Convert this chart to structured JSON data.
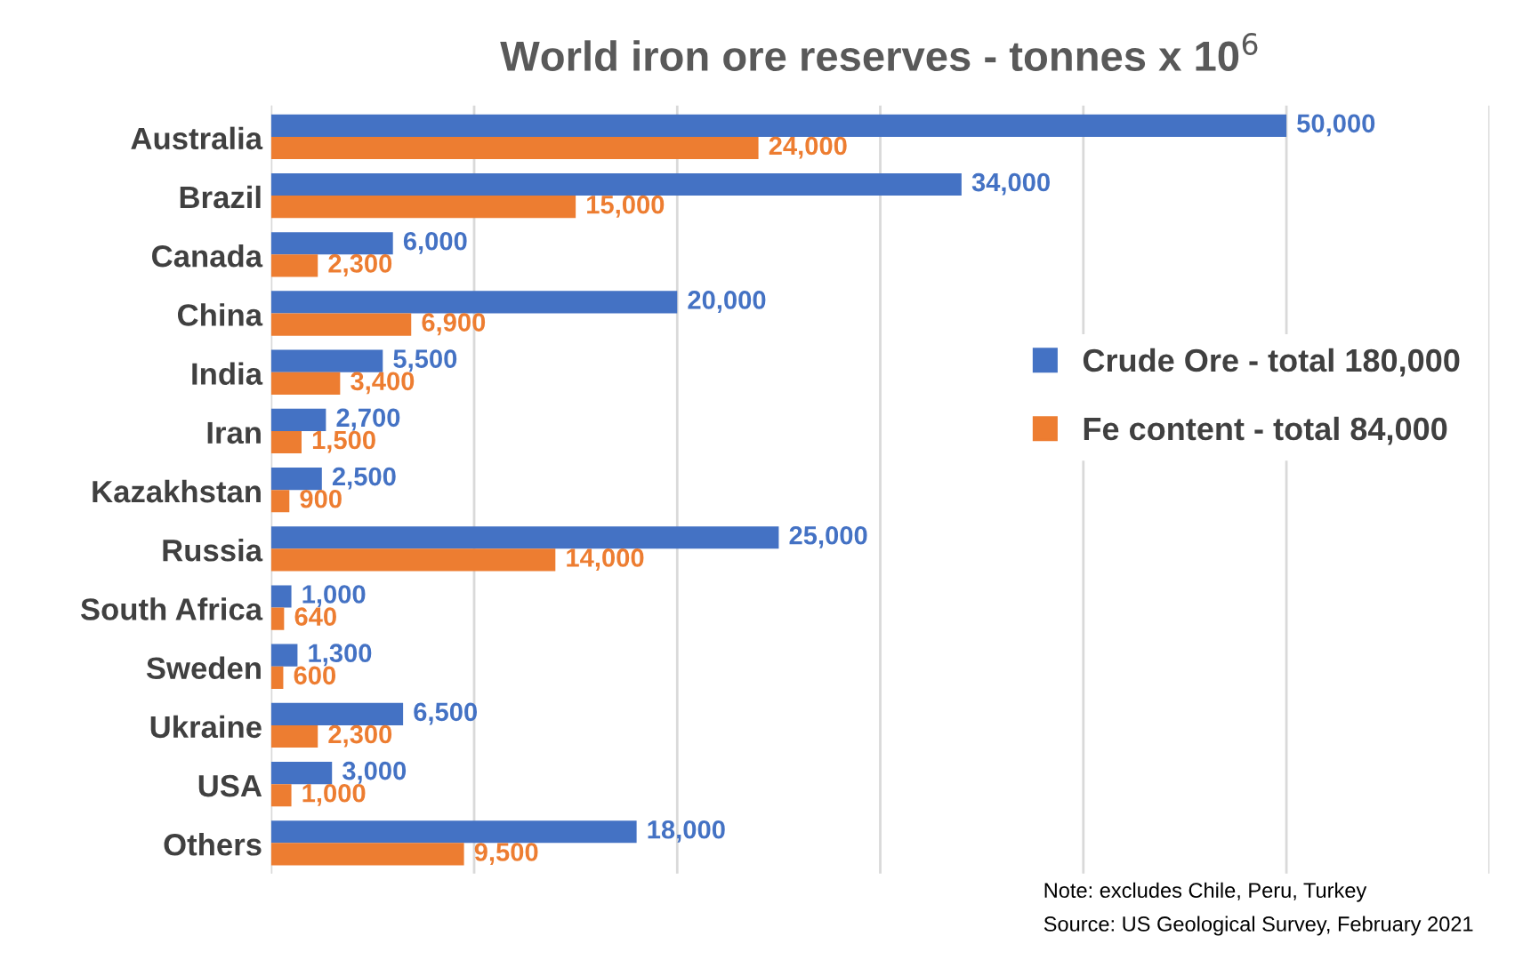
{
  "chart_data": {
    "type": "bar",
    "orientation": "horizontal",
    "title": "World iron ore reserves - tonnes x 10$^{6}$",
    "categories": [
      "Australia",
      "Brazil",
      "Canada",
      "China",
      "India",
      "Iran",
      "Kazakhstan",
      "Russia",
      "South Africa",
      "Sweden",
      "Ukraine",
      "USA",
      "Others"
    ],
    "series": [
      {
        "name": "Crude Ore - total 180,000",
        "color": "#4472c4",
        "values": [
          50000,
          34000,
          6000,
          20000,
          5500,
          2700,
          2500,
          25000,
          1000,
          1300,
          6500,
          3000,
          18000
        ],
        "value_labels": [
          "50,000",
          "34,000",
          "6,000",
          "20,000",
          "5,500",
          "2,700",
          "2,500",
          "25,000",
          "1,000",
          "1,300",
          "6,500",
          "3,000",
          "18,000"
        ]
      },
      {
        "name": "Fe content - total 84,000",
        "color": "#ed7d31",
        "values": [
          24000,
          15000,
          2300,
          6900,
          3400,
          1500,
          900,
          14000,
          640,
          600,
          2300,
          1000,
          9500
        ],
        "value_labels": [
          "24,000",
          "15,000",
          "2,300",
          "6,900",
          "3,400",
          "1,500",
          "900",
          "14,000",
          "640",
          "600",
          "2,300",
          "1,000",
          "9,500"
        ]
      }
    ],
    "xlim": [
      0,
      60000
    ],
    "xticks": [
      {
        "value": 0,
        "label": null
      },
      {
        "value": 10000,
        "label": null
      },
      {
        "value": 20000,
        "label": null
      },
      {
        "value": 30000,
        "label": null
      },
      {
        "value": 40000,
        "label": null
      },
      {
        "value": 50000,
        "label": null
      },
      {
        "value": 60000,
        "label": null
      }
    ],
    "tick_labels": "y",
    "grid": "x",
    "legend": "right",
    "annotations": [
      "Note: excludes Chile, Peru, Turkey",
      "Source: US Geological Survey, February 2021"
    ]
  }
}
